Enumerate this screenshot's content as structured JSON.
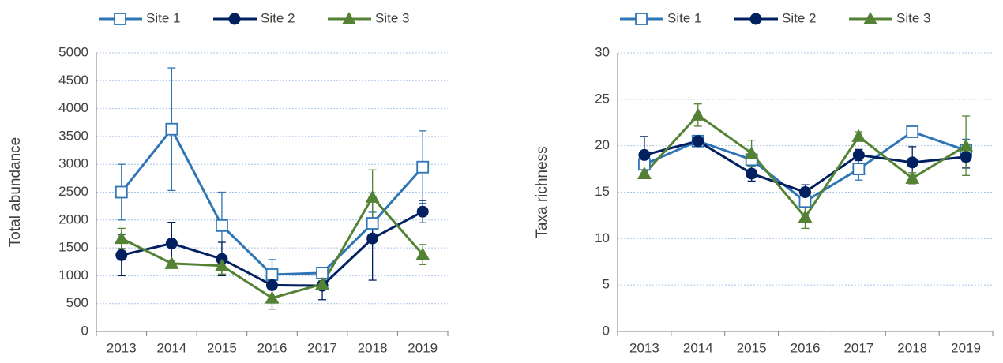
{
  "chart_data": [
    {
      "type": "line",
      "ylabel": "Total abundance",
      "legend": "top",
      "grid": true,
      "categories": [
        "2013",
        "2014",
        "2015",
        "2016",
        "2017",
        "2018",
        "2019"
      ],
      "ylim": [
        0,
        5000
      ],
      "yticks": [
        0,
        500,
        1000,
        1500,
        2000,
        2500,
        3000,
        3500,
        4000,
        4500,
        5000
      ],
      "series": [
        {
          "name": "Site 1",
          "color": "#2e75b6",
          "marker": "square",
          "values": [
            2500,
            3630,
            1900,
            1020,
            1050,
            1940,
            2950
          ],
          "errors": [
            500,
            1100,
            600,
            270,
            100,
            200,
            650
          ]
        },
        {
          "name": "Site 2",
          "color": "#002060",
          "marker": "circle",
          "values": [
            1370,
            1580,
            1300,
            830,
            820,
            1670,
            2150
          ],
          "errors": [
            370,
            380,
            300,
            80,
            250,
            750,
            200
          ]
        },
        {
          "name": "Site 3",
          "color": "#548235",
          "marker": "triangle",
          "values": [
            1670,
            1220,
            1180,
            600,
            850,
            2410,
            1380
          ],
          "errors": [
            180,
            60,
            150,
            200,
            60,
            490,
            180
          ]
        }
      ]
    },
    {
      "type": "line",
      "ylabel": "Taxa richness",
      "legend": "top",
      "grid": true,
      "categories": [
        "2013",
        "2014",
        "2015",
        "2016",
        "2017",
        "2018",
        "2019"
      ],
      "ylim": [
        0,
        30
      ],
      "yticks": [
        0,
        5,
        10,
        15,
        20,
        25,
        30
      ],
      "series": [
        {
          "name": "Site 1",
          "color": "#2e75b6",
          "marker": "square",
          "values": [
            18,
            20.5,
            18.5,
            14,
            17.5,
            21.5,
            19.5
          ],
          "errors": [
            0.6,
            0.5,
            0.6,
            1.5,
            1.2,
            0.5,
            1.2
          ]
        },
        {
          "name": "Site 2",
          "color": "#002060",
          "marker": "circle",
          "values": [
            19,
            20.5,
            17,
            15,
            19,
            18.2,
            18.8
          ],
          "errors": [
            2,
            0.5,
            0.8,
            0.8,
            0.6,
            1.7,
            1.2
          ]
        },
        {
          "name": "Site 3",
          "color": "#548235",
          "marker": "triangle",
          "values": [
            17,
            23.3,
            19.2,
            12.3,
            21,
            16.5,
            20
          ],
          "errors": [
            0.5,
            1.2,
            1.4,
            1.2,
            0.5,
            0.6,
            3.2
          ]
        }
      ]
    }
  ]
}
